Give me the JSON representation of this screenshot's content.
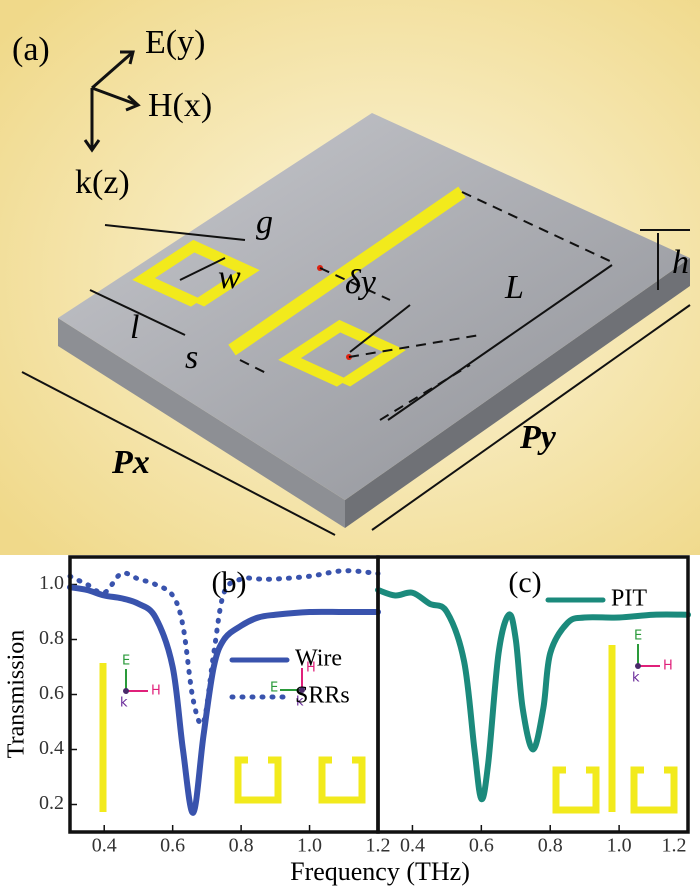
{
  "diagram": {
    "panel": "(a)",
    "E": "E(y)",
    "H": "H(x)",
    "k": "k(z)",
    "g": "g",
    "w": "w",
    "l": "l",
    "s": "s",
    "dy": "δy",
    "L": "L",
    "h": "h",
    "Px": "Px",
    "Py": "Py"
  },
  "inset_labels": {
    "E": "E",
    "H": "H",
    "k": "k"
  },
  "chart_data": [
    {
      "type": "line",
      "title": "(b)",
      "xlabel": "Frequency (THz)",
      "ylabel": "Transmission",
      "x": [
        0.3,
        0.35,
        0.4,
        0.45,
        0.5,
        0.55,
        0.6,
        0.63,
        0.66,
        0.69,
        0.72,
        0.75,
        0.8,
        0.85,
        0.9,
        1.0,
        1.1,
        1.2
      ],
      "series": [
        {
          "name": "Wire",
          "color": "#3953ad",
          "style": "solid",
          "values": [
            0.99,
            0.98,
            0.96,
            0.95,
            0.93,
            0.88,
            0.7,
            0.4,
            0.17,
            0.45,
            0.7,
            0.8,
            0.85,
            0.88,
            0.89,
            0.9,
            0.9,
            0.9
          ]
        },
        {
          "name": "SRRs",
          "color": "#3953ad",
          "style": "dotted",
          "values": [
            1.03,
            1.0,
            0.97,
            1.04,
            1.02,
            1.0,
            0.96,
            0.85,
            0.58,
            0.5,
            0.75,
            0.97,
            1.02,
            1.02,
            1.02,
            1.03,
            1.05,
            1.04
          ]
        }
      ],
      "xlim": [
        0.3,
        1.2
      ],
      "ylim": [
        0.1,
        1.1
      ],
      "xticks": [
        0.4,
        0.6,
        0.8,
        {
          "value": 1,
          "label": "1.0"
        },
        1.2
      ],
      "yticks": [
        0.2,
        0.4,
        0.6,
        0.8,
        {
          "value": 1,
          "label": "1.0"
        }
      ]
    },
    {
      "type": "line",
      "title": "(c)",
      "x": [
        0.3,
        0.35,
        0.4,
        0.45,
        0.5,
        0.55,
        0.58,
        0.6,
        0.62,
        0.65,
        0.68,
        0.7,
        0.72,
        0.75,
        0.78,
        0.8,
        0.85,
        0.9,
        1.0,
        1.1,
        1.2
      ],
      "series": [
        {
          "name": "PIT",
          "color": "#1b8a7c",
          "style": "solid",
          "values": [
            0.98,
            0.96,
            0.97,
            0.93,
            0.9,
            0.72,
            0.4,
            0.22,
            0.35,
            0.75,
            0.89,
            0.8,
            0.55,
            0.4,
            0.55,
            0.75,
            0.86,
            0.88,
            0.88,
            0.89,
            0.89
          ]
        }
      ],
      "xlim": [
        0.3,
        1.2
      ],
      "ylim": [
        0.1,
        1.1
      ],
      "xticks": [
        0.4,
        0.6,
        0.8,
        {
          "value": 1,
          "label": "1.0"
        },
        1.2
      ]
    }
  ]
}
